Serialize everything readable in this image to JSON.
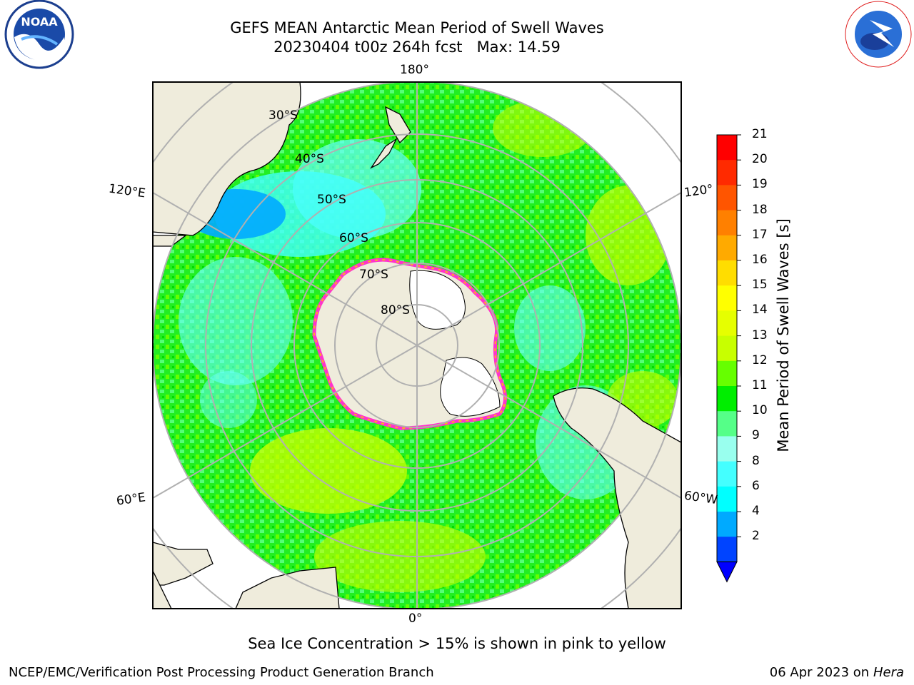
{
  "title": {
    "line1": "GEFS MEAN Antarctic Mean Period of Swell Waves",
    "line2": "20230404 t00z 264h fcst   Max: 14.59"
  },
  "map": {
    "projection": "south polar stereographic",
    "lon_labels": {
      "top": "180°",
      "bottom": "0°",
      "left_upper": "120°E",
      "left_lower": "60°E",
      "right_upper": "120°",
      "right_lower": "60°W"
    },
    "lat_labels": [
      "30°S",
      "40°S",
      "50°S",
      "60°S",
      "70°S",
      "80°S"
    ],
    "land_color": "#efecdc",
    "ice_colors": [
      "#ff33cc",
      "#ffb020"
    ]
  },
  "colorbar": {
    "label": "Mean Period of Swell Waves [s]",
    "ticks": [
      "21",
      "20",
      "19",
      "18",
      "17",
      "16",
      "15",
      "14",
      "13",
      "12",
      "11",
      "10",
      "9",
      "8",
      "6",
      "4",
      "2"
    ],
    "colors": [
      "#ff0000",
      "#ff2a00",
      "#ff5500",
      "#ff8000",
      "#ffaa00",
      "#ffdd00",
      "#ffff00",
      "#e6ff00",
      "#c8ff00",
      "#66ff00",
      "#00ee00",
      "#55ff88",
      "#99ffee",
      "#44ffff",
      "#00ffff",
      "#00aaff",
      "#0044ff"
    ],
    "under_color": "#0000ff"
  },
  "note": "Sea Ice Concentration > 15% is shown in pink to yellow",
  "footer": {
    "left": "NCEP/EMC/Verification Post Processing Product Generation Branch",
    "right_date": "06 Apr 2023 on ",
    "right_machine": "Hera"
  },
  "logos": {
    "left": "NOAA",
    "right": "NATIONAL WEATHER SERVICE"
  }
}
